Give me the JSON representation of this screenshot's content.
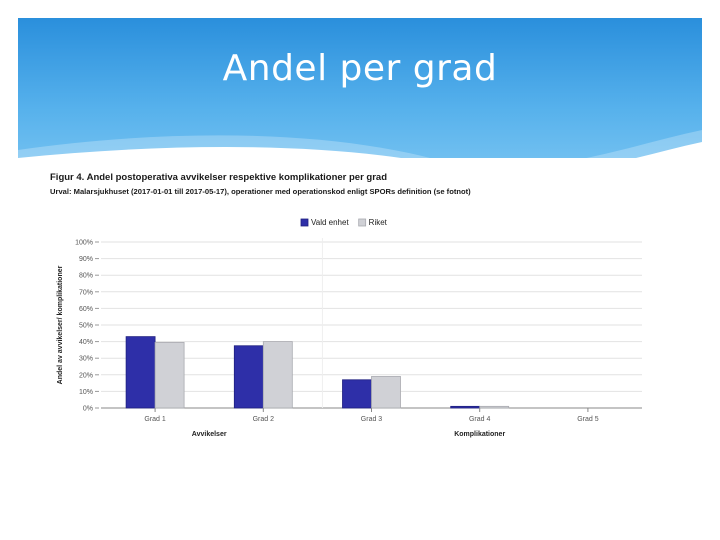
{
  "slide": {
    "title": "Andel per grad"
  },
  "figure": {
    "title": "Figur 4. Andel postoperativa avvikelser respektive komplikationer per grad",
    "subtitle": "Urval: Malarsjukhuset (2017-01-01 till 2017-05-17), operationer med operationskod enligt SPORs definition (se fotnot)"
  },
  "colors": {
    "banner": "#3ea0e6",
    "series_1": "#2e2fa8",
    "series_2": "#d0d1d6"
  },
  "chart_data": {
    "type": "bar",
    "categories": [
      "Grad 1",
      "Grad 2",
      "Grad 3",
      "Grad 4",
      "Grad 5"
    ],
    "series": [
      {
        "name": "Vald enhet",
        "values": [
          43,
          37.5,
          17,
          1,
          0
        ]
      },
      {
        "name": "Riket",
        "values": [
          39.5,
          40,
          19,
          1,
          0
        ]
      }
    ],
    "ylabel": "Andel av avvikelser/ komplikationer",
    "yticks": [
      "0%",
      "10%",
      "20%",
      "30%",
      "40%",
      "50%",
      "60%",
      "70%",
      "80%",
      "90%",
      "100%"
    ],
    "ylim": [
      0,
      100
    ],
    "group_labels": [
      "Avvikelser",
      "Komplikationer"
    ],
    "legend_position": "top-center",
    "grid": true
  }
}
